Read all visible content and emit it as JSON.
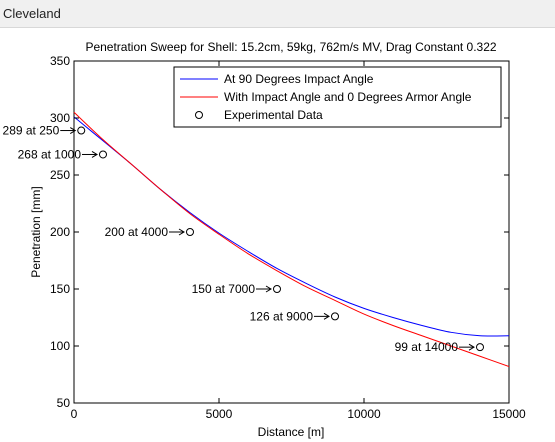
{
  "window": {
    "title": "Cleveland"
  },
  "chart_data": {
    "type": "line",
    "title": "Penetration Sweep for Shell: 15.2cm, 59kg, 762m/s MV, Drag Constant 0.322",
    "xlabel": "Distance [m]",
    "ylabel": "Penetration [mm]",
    "xlim": [
      0,
      15000
    ],
    "ylim": [
      50,
      350
    ],
    "xticks": [
      0,
      5000,
      10000,
      15000
    ],
    "yticks": [
      50,
      100,
      150,
      200,
      250,
      300,
      350
    ],
    "grid": false,
    "legend_position": "top-right",
    "series": [
      {
        "name": "At 90 Degrees Impact Angle",
        "kind": "line",
        "color": "#0000ff",
        "x": [
          0,
          1000,
          2000,
          3000,
          4000,
          5000,
          6000,
          7000,
          8000,
          9000,
          10000,
          11000,
          12000,
          13000,
          14000,
          15000
        ],
        "y": [
          301,
          280,
          259,
          237,
          217,
          199,
          183,
          168,
          155,
          143,
          133,
          125,
          118,
          112,
          109,
          109
        ]
      },
      {
        "name": "With Impact Angle and 0 Degrees Armor Angle",
        "kind": "line",
        "color": "#ff0000",
        "x": [
          0,
          1000,
          2000,
          3000,
          4000,
          5000,
          6000,
          7000,
          8000,
          9000,
          10000,
          11000,
          12000,
          13000,
          14000,
          15000
        ],
        "y": [
          305,
          281,
          259,
          237,
          216,
          198,
          181,
          166,
          152,
          140,
          128,
          118,
          109,
          100,
          91,
          82
        ]
      },
      {
        "name": "Experimental Data",
        "kind": "scatter",
        "color": "#000000",
        "x": [
          250,
          1000,
          4000,
          7000,
          9000,
          14000
        ],
        "y": [
          289,
          268,
          200,
          150,
          126,
          99
        ]
      }
    ],
    "annotations": [
      {
        "text": "289 at 250",
        "x": 250,
        "y": 289
      },
      {
        "text": "268 at 1000",
        "x": 1000,
        "y": 268
      },
      {
        "text": "200 at 4000",
        "x": 4000,
        "y": 200
      },
      {
        "text": "150 at 7000",
        "x": 7000,
        "y": 150
      },
      {
        "text": "126 at 9000",
        "x": 9000,
        "y": 126
      },
      {
        "text": "99 at 14000",
        "x": 14000,
        "y": 99
      }
    ]
  }
}
